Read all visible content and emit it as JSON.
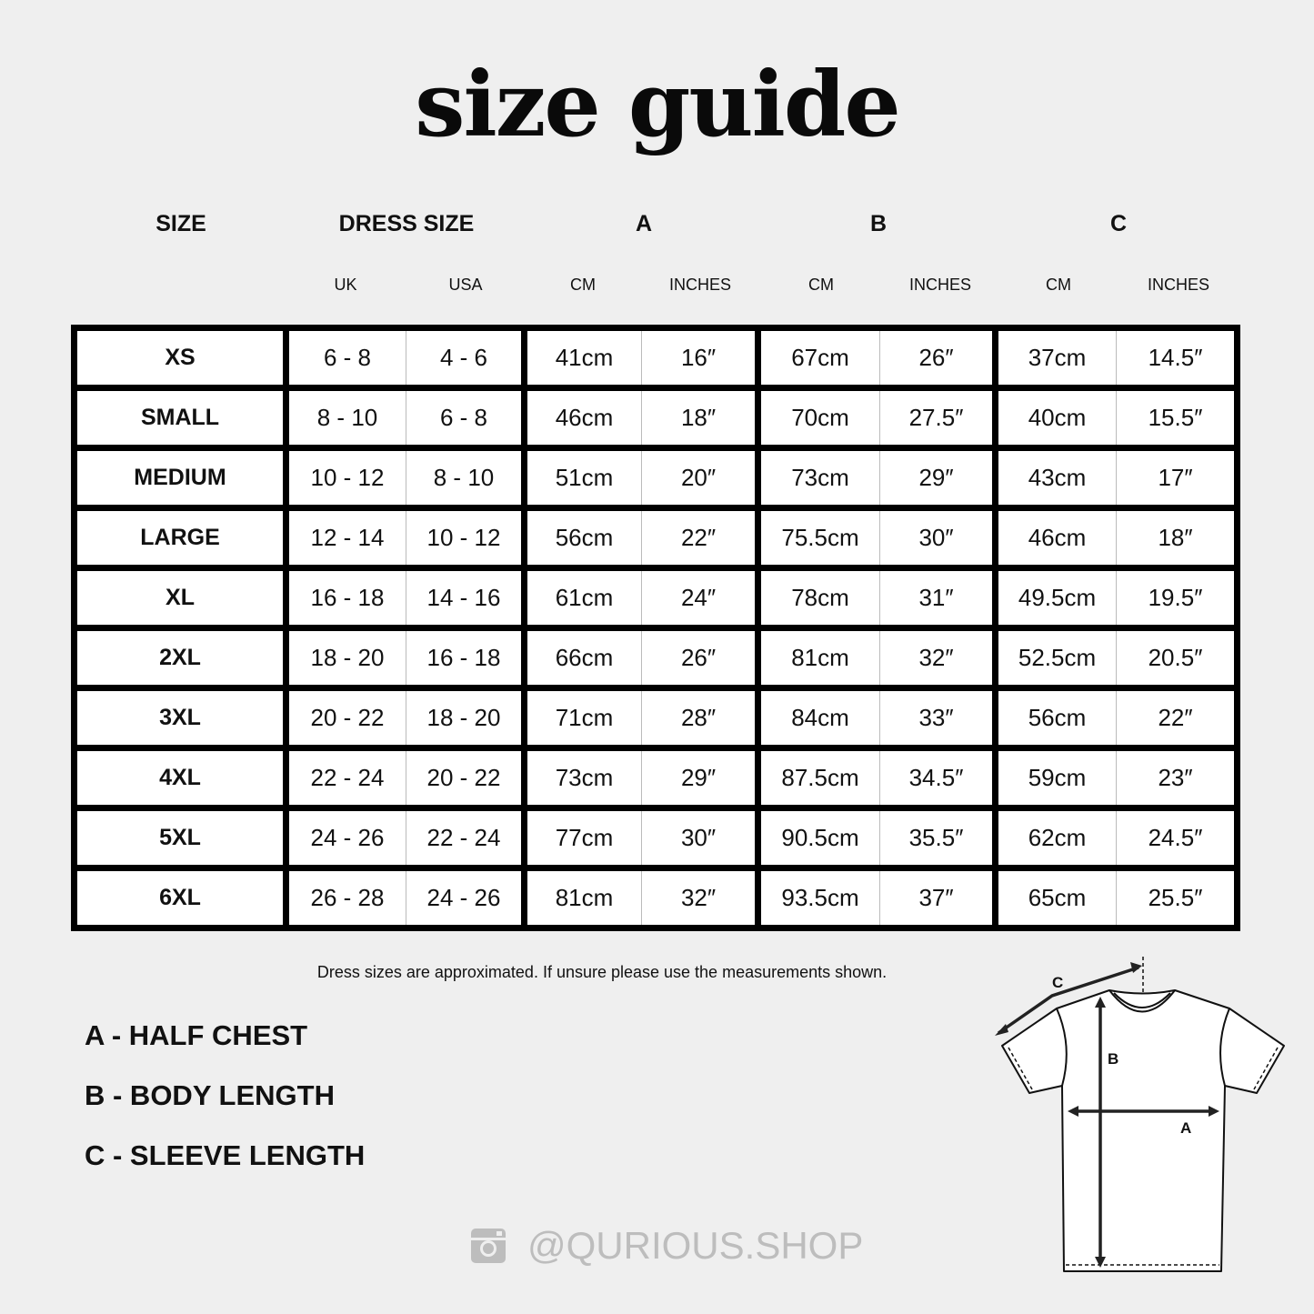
{
  "title": "size guide",
  "headers": [
    "SIZE",
    "DRESS SIZE",
    "A",
    "B",
    "C"
  ],
  "subheaders": [
    "UK",
    "USA",
    "CM",
    "INCHES",
    "CM",
    "INCHES",
    "CM",
    "INCHES"
  ],
  "rows": [
    [
      "XS",
      "6 - 8",
      "4 - 6",
      "41cm",
      "16″",
      "67cm",
      "26″",
      "37cm",
      "14.5″"
    ],
    [
      "SMALL",
      "8 - 10",
      "6 - 8",
      "46cm",
      "18″",
      "70cm",
      "27.5″",
      "40cm",
      "15.5″"
    ],
    [
      "MEDIUM",
      "10 - 12",
      "8 - 10",
      "51cm",
      "20″",
      "73cm",
      "29″",
      "43cm",
      "17″"
    ],
    [
      "LARGE",
      "12 - 14",
      "10 - 12",
      "56cm",
      "22″",
      "75.5cm",
      "30″",
      "46cm",
      "18″"
    ],
    [
      "XL",
      "16 - 18",
      "14 - 16",
      "61cm",
      "24″",
      "78cm",
      "31″",
      "49.5cm",
      "19.5″"
    ],
    [
      "2XL",
      "18 - 20",
      "16 - 18",
      "66cm",
      "26″",
      "81cm",
      "32″",
      "52.5cm",
      "20.5″"
    ],
    [
      "3XL",
      "20 - 22",
      "18 - 20",
      "71cm",
      "28″",
      "84cm",
      "33″",
      "56cm",
      "22″"
    ],
    [
      "4XL",
      "22 - 24",
      "20 - 22",
      "73cm",
      "29″",
      "87.5cm",
      "34.5″",
      "59cm",
      "23″"
    ],
    [
      "5XL",
      "24 - 26",
      "22 - 24",
      "77cm",
      "30″",
      "90.5cm",
      "35.5″",
      "62cm",
      "24.5″"
    ],
    [
      "6XL",
      "26 - 28",
      "24 - 26",
      "81cm",
      "32″",
      "93.5cm",
      "37″",
      "65cm",
      "25.5″"
    ]
  ],
  "note": "Dress sizes are approximated. If unsure please use the measurements shown.",
  "legend": [
    "A - HALF CHEST",
    "B - BODY LENGTH",
    "C - SLEEVE LENGTH"
  ],
  "diagram": {
    "labels": [
      "A",
      "B",
      "C"
    ]
  },
  "social": {
    "icon": "instagram-icon",
    "handle": "@QURIOUS.SHOP"
  },
  "colors": {
    "background": "#efefef",
    "text": "#111111",
    "handle": "#bdbdbd"
  }
}
